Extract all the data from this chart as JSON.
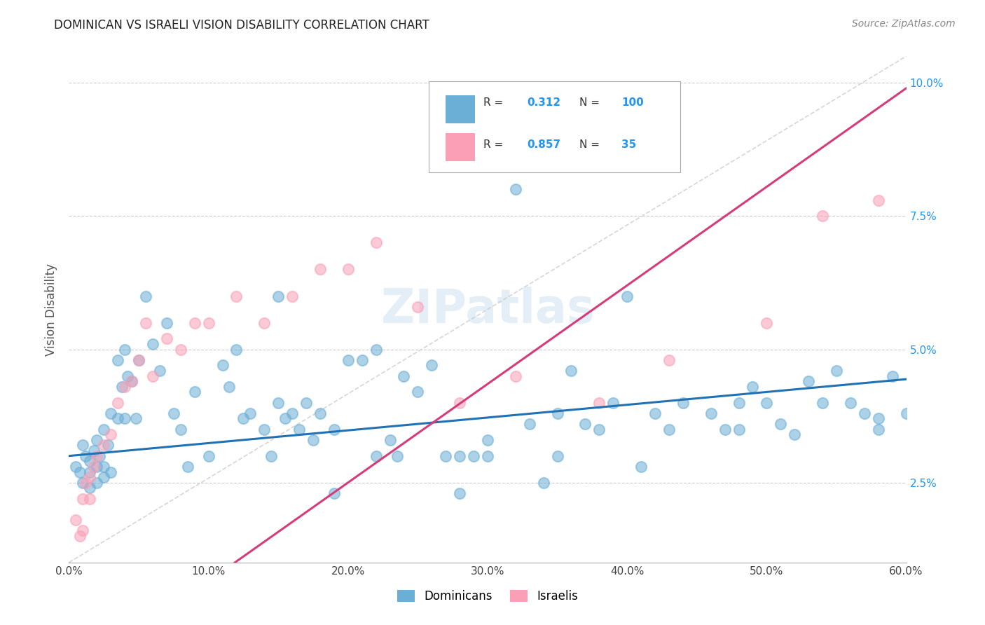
{
  "title": "DOMINICAN VS ISRAELI VISION DISABILITY CORRELATION CHART",
  "source": "Source: ZipAtlas.com",
  "ylabel": "Vision Disability",
  "xlabel_ticks": [
    "0.0%",
    "10.0%",
    "20.0%",
    "30.0%",
    "40.0%",
    "50.0%",
    "60.0%"
  ],
  "xlabel_vals": [
    0.0,
    0.1,
    0.2,
    0.3,
    0.4,
    0.5,
    0.6
  ],
  "ylabel_ticks": [
    "2.5%",
    "5.0%",
    "7.5%",
    "10.0%"
  ],
  "ylabel_vals": [
    0.025,
    0.05,
    0.075,
    0.1
  ],
  "xmin": 0.0,
  "xmax": 0.6,
  "ymin": 0.01,
  "ymax": 0.105,
  "dominican_color": "#6baed6",
  "israeli_color": "#fa9fb5",
  "trend_dominican_color": "#2171b5",
  "trend_israeli_color": "#d63b7a",
  "diagonal_color": "#cccccc",
  "R_dominican": "0.312",
  "N_dominican": "100",
  "R_israeli": "0.857",
  "N_israeli": "35",
  "watermark": "ZIPatlas",
  "trend_dom_intercept": 0.03,
  "trend_dom_slope": 0.024,
  "trend_isr_intercept": -0.012,
  "trend_isr_slope": 0.185,
  "dominican_x": [
    0.005,
    0.008,
    0.01,
    0.01,
    0.012,
    0.015,
    0.015,
    0.015,
    0.018,
    0.02,
    0.02,
    0.02,
    0.022,
    0.025,
    0.025,
    0.025,
    0.028,
    0.03,
    0.03,
    0.035,
    0.035,
    0.038,
    0.04,
    0.04,
    0.042,
    0.045,
    0.048,
    0.05,
    0.055,
    0.06,
    0.065,
    0.07,
    0.075,
    0.08,
    0.085,
    0.09,
    0.1,
    0.11,
    0.115,
    0.12,
    0.125,
    0.13,
    0.14,
    0.145,
    0.15,
    0.15,
    0.155,
    0.16,
    0.165,
    0.17,
    0.175,
    0.18,
    0.19,
    0.2,
    0.21,
    0.22,
    0.23,
    0.235,
    0.24,
    0.25,
    0.26,
    0.27,
    0.28,
    0.29,
    0.3,
    0.32,
    0.33,
    0.34,
    0.35,
    0.36,
    0.37,
    0.38,
    0.39,
    0.4,
    0.41,
    0.43,
    0.44,
    0.46,
    0.47,
    0.48,
    0.49,
    0.5,
    0.51,
    0.53,
    0.54,
    0.55,
    0.57,
    0.58,
    0.59,
    0.6,
    0.22,
    0.3,
    0.19,
    0.28,
    0.35,
    0.42,
    0.48,
    0.52,
    0.56,
    0.58
  ],
  "dominican_y": [
    0.028,
    0.027,
    0.032,
    0.025,
    0.03,
    0.029,
    0.027,
    0.024,
    0.031,
    0.033,
    0.028,
    0.025,
    0.03,
    0.035,
    0.028,
    0.026,
    0.032,
    0.038,
    0.027,
    0.048,
    0.037,
    0.043,
    0.05,
    0.037,
    0.045,
    0.044,
    0.037,
    0.048,
    0.06,
    0.051,
    0.046,
    0.055,
    0.038,
    0.035,
    0.028,
    0.042,
    0.03,
    0.047,
    0.043,
    0.05,
    0.037,
    0.038,
    0.035,
    0.03,
    0.06,
    0.04,
    0.037,
    0.038,
    0.035,
    0.04,
    0.033,
    0.038,
    0.035,
    0.048,
    0.048,
    0.05,
    0.033,
    0.03,
    0.045,
    0.042,
    0.047,
    0.03,
    0.03,
    0.03,
    0.033,
    0.08,
    0.036,
    0.025,
    0.038,
    0.046,
    0.036,
    0.035,
    0.04,
    0.06,
    0.028,
    0.035,
    0.04,
    0.038,
    0.035,
    0.035,
    0.043,
    0.04,
    0.036,
    0.044,
    0.04,
    0.046,
    0.038,
    0.037,
    0.045,
    0.038,
    0.03,
    0.03,
    0.023,
    0.023,
    0.03,
    0.038,
    0.04,
    0.034,
    0.04,
    0.035
  ],
  "israeli_x": [
    0.005,
    0.008,
    0.01,
    0.01,
    0.012,
    0.015,
    0.015,
    0.018,
    0.02,
    0.025,
    0.03,
    0.035,
    0.04,
    0.045,
    0.05,
    0.055,
    0.06,
    0.07,
    0.08,
    0.09,
    0.1,
    0.12,
    0.14,
    0.16,
    0.18,
    0.2,
    0.22,
    0.25,
    0.28,
    0.32,
    0.38,
    0.43,
    0.5,
    0.54,
    0.58
  ],
  "israeli_y": [
    0.018,
    0.015,
    0.022,
    0.016,
    0.025,
    0.026,
    0.022,
    0.028,
    0.03,
    0.032,
    0.034,
    0.04,
    0.043,
    0.044,
    0.048,
    0.055,
    0.045,
    0.052,
    0.05,
    0.055,
    0.055,
    0.06,
    0.055,
    0.06,
    0.065,
    0.065,
    0.07,
    0.058,
    0.04,
    0.045,
    0.04,
    0.048,
    0.055,
    0.075,
    0.078
  ]
}
